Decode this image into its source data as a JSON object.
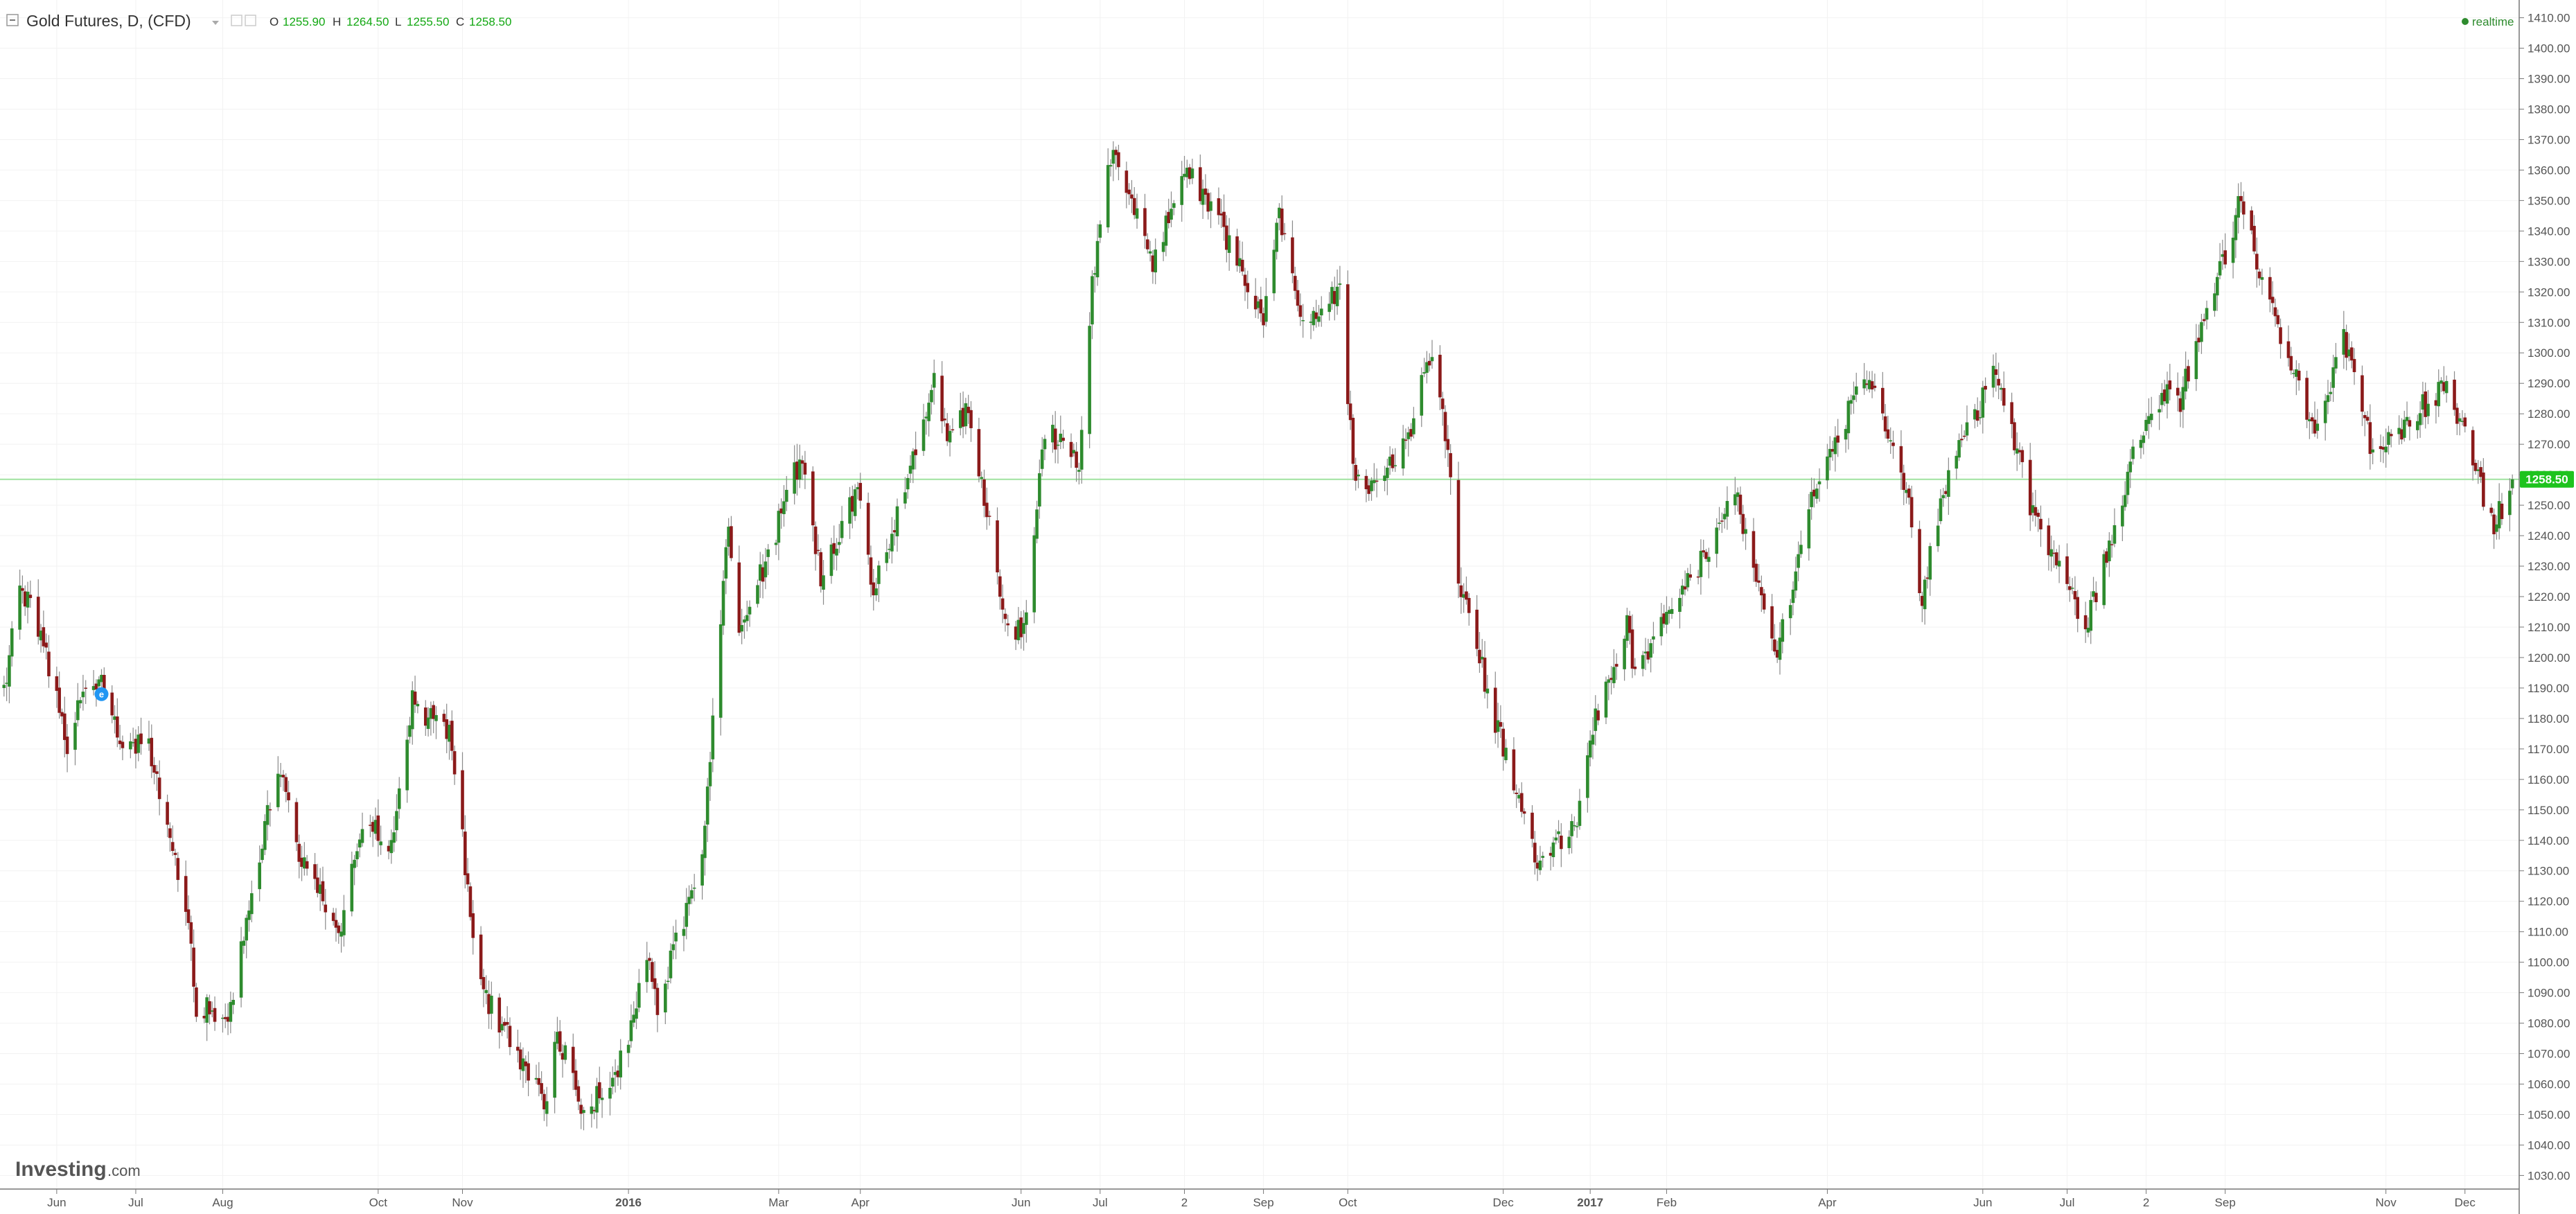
{
  "header": {
    "symbol": "Gold Futures, D, (CFD)",
    "ohlc": [
      {
        "key": "O",
        "value": "1255.90"
      },
      {
        "key": "H",
        "value": "1264.50"
      },
      {
        "key": "L",
        "value": "1255.50"
      },
      {
        "key": "C",
        "value": "1258.50"
      }
    ],
    "status": "realtime"
  },
  "branding": {
    "logo_text": "Investing",
    "logo_suffix": ".com"
  },
  "colors": {
    "up": "#2e8b2e",
    "down": "#8b1a1a",
    "wick": "#8a8a8a",
    "price_line": "#9fe29f",
    "price_badge": "#1ec31e",
    "grid": "#f2f2f2",
    "axis_text": "#555555",
    "ohlc_text": "#13a813",
    "event_marker": "#2196f3"
  },
  "chart_data": {
    "type": "candlestick",
    "title": "Gold Futures, D, (CFD)",
    "ylim": [
      1026,
      1414
    ],
    "y_ticks": [
      "1030.00",
      "1040.00",
      "1050.00",
      "1060.00",
      "1070.00",
      "1080.00",
      "1090.00",
      "1100.00",
      "1110.00",
      "1120.00",
      "1130.00",
      "1140.00",
      "1150.00",
      "1160.00",
      "1170.00",
      "1180.00",
      "1190.00",
      "1200.00",
      "1210.00",
      "1220.00",
      "1230.00",
      "1240.00",
      "1250.00",
      "1260.00",
      "1270.00",
      "1280.00",
      "1290.00",
      "1300.00",
      "1310.00",
      "1320.00",
      "1330.00",
      "1340.00",
      "1350.00",
      "1360.00",
      "1370.00",
      "1380.00",
      "1390.00",
      "1400.00",
      "1410.00"
    ],
    "x_ticks": [
      {
        "label": "Jun",
        "date": "2015-06-01",
        "bold": false
      },
      {
        "label": "Jul",
        "date": "2015-07-01",
        "bold": false
      },
      {
        "label": "Aug",
        "date": "2015-08-03",
        "bold": false
      },
      {
        "label": "Oct",
        "date": "2015-10-01",
        "bold": false
      },
      {
        "label": "Nov",
        "date": "2015-11-02",
        "bold": false
      },
      {
        "label": "2016",
        "date": "2016-01-04",
        "bold": true
      },
      {
        "label": "Mar",
        "date": "2016-03-01",
        "bold": false
      },
      {
        "label": "Apr",
        "date": "2016-04-01",
        "bold": false
      },
      {
        "label": "Jun",
        "date": "2016-06-01",
        "bold": false
      },
      {
        "label": "Jul",
        "date": "2016-07-01",
        "bold": false
      },
      {
        "label": "2",
        "date": "2016-08-02",
        "bold": false
      },
      {
        "label": "Sep",
        "date": "2016-09-01",
        "bold": false
      },
      {
        "label": "Oct",
        "date": "2016-10-03",
        "bold": false
      },
      {
        "label": "Dec",
        "date": "2016-12-01",
        "bold": false
      },
      {
        "label": "2017",
        "date": "2017-01-03",
        "bold": true
      },
      {
        "label": "Feb",
        "date": "2017-02-01",
        "bold": false
      },
      {
        "label": "Apr",
        "date": "2017-04-03",
        "bold": false
      },
      {
        "label": "Jun",
        "date": "2017-06-01",
        "bold": false
      },
      {
        "label": "Jul",
        "date": "2017-07-03",
        "bold": false
      },
      {
        "label": "2",
        "date": "2017-08-02",
        "bold": false
      },
      {
        "label": "Sep",
        "date": "2017-09-01",
        "bold": false
      },
      {
        "label": "Nov",
        "date": "2017-11-01",
        "bold": false
      },
      {
        "label": "Dec",
        "date": "2017-12-01",
        "bold": false
      }
    ],
    "last_price": 1258.5,
    "last_price_label": "1258.50",
    "price_path": [
      {
        "date": "2015-05-12",
        "price": 1190
      },
      {
        "date": "2015-05-18",
        "price": 1225
      },
      {
        "date": "2015-05-26",
        "price": 1207
      },
      {
        "date": "2015-06-05",
        "price": 1170
      },
      {
        "date": "2015-06-10",
        "price": 1186
      },
      {
        "date": "2015-06-18",
        "price": 1195
      },
      {
        "date": "2015-06-24",
        "price": 1174
      },
      {
        "date": "2015-07-06",
        "price": 1170
      },
      {
        "date": "2015-07-20",
        "price": 1120
      },
      {
        "date": "2015-07-24",
        "price": 1085
      },
      {
        "date": "2015-08-05",
        "price": 1082
      },
      {
        "date": "2015-08-24",
        "price": 1165
      },
      {
        "date": "2015-09-01",
        "price": 1135
      },
      {
        "date": "2015-09-16",
        "price": 1110
      },
      {
        "date": "2015-09-25",
        "price": 1145
      },
      {
        "date": "2015-10-06",
        "price": 1140
      },
      {
        "date": "2015-10-14",
        "price": 1185
      },
      {
        "date": "2015-10-28",
        "price": 1176
      },
      {
        "date": "2015-11-09",
        "price": 1090
      },
      {
        "date": "2015-11-20",
        "price": 1075
      },
      {
        "date": "2015-12-03",
        "price": 1053
      },
      {
        "date": "2015-12-08",
        "price": 1078
      },
      {
        "date": "2015-12-17",
        "price": 1052
      },
      {
        "date": "2015-12-30",
        "price": 1061
      },
      {
        "date": "2016-01-11",
        "price": 1100
      },
      {
        "date": "2016-01-15",
        "price": 1085
      },
      {
        "date": "2016-02-01",
        "price": 1135
      },
      {
        "date": "2016-02-11",
        "price": 1245
      },
      {
        "date": "2016-02-15",
        "price": 1205
      },
      {
        "date": "2016-02-26",
        "price": 1234
      },
      {
        "date": "2016-03-10",
        "price": 1268
      },
      {
        "date": "2016-03-17",
        "price": 1225
      },
      {
        "date": "2016-03-31",
        "price": 1255
      },
      {
        "date": "2016-04-06",
        "price": 1220
      },
      {
        "date": "2016-04-29",
        "price": 1291
      },
      {
        "date": "2016-05-04",
        "price": 1275
      },
      {
        "date": "2016-05-12",
        "price": 1280
      },
      {
        "date": "2016-05-27",
        "price": 1210
      },
      {
        "date": "2016-06-02",
        "price": 1208
      },
      {
        "date": "2016-06-10",
        "price": 1275
      },
      {
        "date": "2016-06-23",
        "price": 1262
      },
      {
        "date": "2016-06-28",
        "price": 1325
      },
      {
        "date": "2016-07-06",
        "price": 1370
      },
      {
        "date": "2016-07-21",
        "price": 1330
      },
      {
        "date": "2016-08-02",
        "price": 1360
      },
      {
        "date": "2016-08-17",
        "price": 1340
      },
      {
        "date": "2016-09-01",
        "price": 1310
      },
      {
        "date": "2016-09-07",
        "price": 1345
      },
      {
        "date": "2016-09-15",
        "price": 1310
      },
      {
        "date": "2016-09-30",
        "price": 1320
      },
      {
        "date": "2016-10-06",
        "price": 1255
      },
      {
        "date": "2016-10-18",
        "price": 1262
      },
      {
        "date": "2016-10-28",
        "price": 1277
      },
      {
        "date": "2016-11-03",
        "price": 1300
      },
      {
        "date": "2016-11-10",
        "price": 1270
      },
      {
        "date": "2016-11-14",
        "price": 1225
      },
      {
        "date": "2016-12-01",
        "price": 1170
      },
      {
        "date": "2016-12-15",
        "price": 1130
      },
      {
        "date": "2016-12-30",
        "price": 1150
      },
      {
        "date": "2017-01-05",
        "price": 1180
      },
      {
        "date": "2017-01-17",
        "price": 1210
      },
      {
        "date": "2017-01-20",
        "price": 1195
      },
      {
        "date": "2017-02-13",
        "price": 1230
      },
      {
        "date": "2017-02-27",
        "price": 1255
      },
      {
        "date": "2017-03-06",
        "price": 1230
      },
      {
        "date": "2017-03-15",
        "price": 1200
      },
      {
        "date": "2017-03-27",
        "price": 1250
      },
      {
        "date": "2017-04-17",
        "price": 1292
      },
      {
        "date": "2017-05-01",
        "price": 1265
      },
      {
        "date": "2017-05-09",
        "price": 1220
      },
      {
        "date": "2017-05-17",
        "price": 1255
      },
      {
        "date": "2017-06-06",
        "price": 1295
      },
      {
        "date": "2017-06-19",
        "price": 1250
      },
      {
        "date": "2017-07-10",
        "price": 1210
      },
      {
        "date": "2017-07-28",
        "price": 1265
      },
      {
        "date": "2017-08-10",
        "price": 1290
      },
      {
        "date": "2017-08-14",
        "price": 1282
      },
      {
        "date": "2017-09-07",
        "price": 1350
      },
      {
        "date": "2017-09-20",
        "price": 1310
      },
      {
        "date": "2017-10-05",
        "price": 1275
      },
      {
        "date": "2017-10-16",
        "price": 1305
      },
      {
        "date": "2017-10-26",
        "price": 1270
      },
      {
        "date": "2017-11-06",
        "price": 1275
      },
      {
        "date": "2017-11-24",
        "price": 1290
      },
      {
        "date": "2017-12-12",
        "price": 1243
      },
      {
        "date": "2017-12-19",
        "price": 1258.5
      }
    ]
  }
}
